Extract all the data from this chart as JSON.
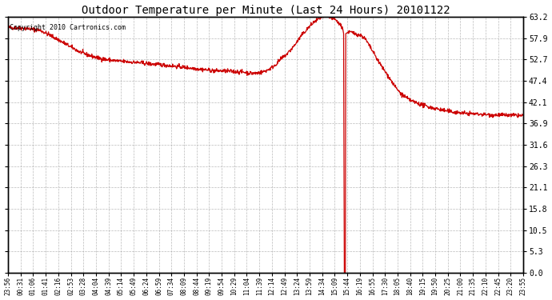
{
  "title": "Outdoor Temperature per Minute (Last 24 Hours) 20101122",
  "copyright_text": "Copyright 2010 Cartronics.com",
  "background_color": "#ffffff",
  "plot_bg_color": "#ffffff",
  "line_color": "#cc0000",
  "grid_color": "#aaaaaa",
  "ylim": [
    0.0,
    63.2
  ],
  "yticks": [
    0.0,
    5.3,
    10.5,
    15.8,
    21.1,
    26.3,
    31.6,
    36.9,
    42.1,
    47.4,
    52.7,
    57.9,
    63.2
  ],
  "xtick_labels": [
    "23:56",
    "00:31",
    "01:06",
    "01:41",
    "02:16",
    "02:53",
    "03:28",
    "04:04",
    "04:39",
    "05:14",
    "05:49",
    "06:24",
    "06:59",
    "07:34",
    "08:09",
    "08:44",
    "09:19",
    "09:54",
    "10:29",
    "11:04",
    "11:39",
    "12:14",
    "12:49",
    "13:24",
    "13:59",
    "14:34",
    "15:09",
    "15:44",
    "16:19",
    "16:55",
    "17:30",
    "18:05",
    "18:40",
    "19:15",
    "19:50",
    "20:25",
    "21:00",
    "21:35",
    "22:10",
    "22:45",
    "23:20",
    "23:55"
  ],
  "keypoints": [
    [
      0,
      60.5
    ],
    [
      50,
      60.3
    ],
    [
      90,
      59.8
    ],
    [
      120,
      58.5
    ],
    [
      150,
      57.0
    ],
    [
      180,
      55.5
    ],
    [
      200,
      54.5
    ],
    [
      220,
      53.8
    ],
    [
      250,
      53.0
    ],
    [
      280,
      52.5
    ],
    [
      310,
      52.2
    ],
    [
      340,
      52.0
    ],
    [
      370,
      51.8
    ],
    [
      400,
      51.5
    ],
    [
      430,
      51.3
    ],
    [
      460,
      51.0
    ],
    [
      490,
      50.7
    ],
    [
      510,
      50.5
    ],
    [
      530,
      50.3
    ],
    [
      550,
      50.1
    ],
    [
      560,
      50.0
    ],
    [
      580,
      49.8
    ],
    [
      600,
      49.8
    ],
    [
      620,
      49.7
    ],
    [
      640,
      49.6
    ],
    [
      660,
      49.5
    ],
    [
      670,
      49.3
    ],
    [
      680,
      49.2
    ],
    [
      690,
      49.2
    ],
    [
      700,
      49.3
    ],
    [
      710,
      49.5
    ],
    [
      720,
      49.8
    ],
    [
      730,
      50.2
    ],
    [
      740,
      50.8
    ],
    [
      750,
      51.5
    ],
    [
      760,
      52.5
    ],
    [
      780,
      54.0
    ],
    [
      800,
      56.0
    ],
    [
      820,
      58.5
    ],
    [
      840,
      60.5
    ],
    [
      855,
      61.8
    ],
    [
      865,
      62.5
    ],
    [
      875,
      63.0
    ],
    [
      885,
      63.2
    ],
    [
      895,
      63.1
    ],
    [
      905,
      62.8
    ],
    [
      915,
      62.4
    ],
    [
      920,
      62.0
    ],
    [
      925,
      61.5
    ],
    [
      930,
      61.0
    ],
    [
      935,
      60.5
    ],
    [
      938,
      59.0
    ],
    [
      940,
      0.2
    ],
    [
      941,
      0.0
    ],
    [
      942,
      0.0
    ],
    [
      943,
      0.1
    ],
    [
      944,
      59.0
    ],
    [
      950,
      59.3
    ],
    [
      955,
      59.4
    ],
    [
      960,
      59.3
    ],
    [
      965,
      59.1
    ],
    [
      970,
      59.0
    ],
    [
      975,
      58.9
    ],
    [
      980,
      58.7
    ],
    [
      990,
      58.4
    ],
    [
      1000,
      57.5
    ],
    [
      1010,
      56.0
    ],
    [
      1020,
      54.5
    ],
    [
      1030,
      53.0
    ],
    [
      1040,
      51.5
    ],
    [
      1055,
      49.5
    ],
    [
      1070,
      47.5
    ],
    [
      1085,
      45.5
    ],
    [
      1100,
      44.0
    ],
    [
      1115,
      43.0
    ],
    [
      1130,
      42.3
    ],
    [
      1145,
      41.8
    ],
    [
      1160,
      41.3
    ],
    [
      1180,
      40.8
    ],
    [
      1200,
      40.4
    ],
    [
      1220,
      40.0
    ],
    [
      1240,
      39.7
    ],
    [
      1260,
      39.5
    ],
    [
      1280,
      39.3
    ],
    [
      1300,
      39.2
    ],
    [
      1320,
      39.1
    ],
    [
      1340,
      39.0
    ],
    [
      1360,
      38.9
    ],
    [
      1380,
      38.9
    ],
    [
      1400,
      38.8
    ],
    [
      1420,
      38.8
    ],
    [
      1440,
      38.7
    ]
  ]
}
